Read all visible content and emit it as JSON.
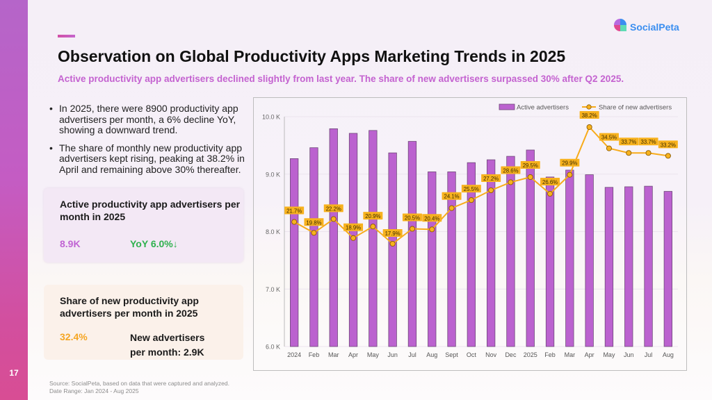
{
  "page": {
    "page_number": "17",
    "title": "Observation on Global Productivity Apps Marketing Trends in 2025",
    "subtitle": "Active productivity app advertisers declined slightly from last year. The share of new advertisers surpassed 30% after Q2 2025.",
    "logo_text": "SocialPeta",
    "logo_icon": "socialpeta-logo-icon",
    "bullets": [
      "In 2025, there were 8900 productivity app advertisers per month, a 6% decline YoY, showing a downward trend.",
      "The share of monthly new productivity app advertisers kept rising, peaking at 38.2% in April and remaining above 30% thereafter."
    ],
    "card_active": {
      "title": "Active productivity app advertisers per month in 2025",
      "value": "8.9K",
      "yoy": "YoY 6.0%↓"
    },
    "card_share": {
      "title": "Share of new productivity app advertisers per month in 2025",
      "value": "32.4%",
      "new_advertisers": "New advertisers per month: 2.9K"
    },
    "source_lines": [
      "Source: SocialPeta, based on data that were captured and analyzed.",
      "Date Range: Jan 2024 - Aug 2025"
    ],
    "colors": {
      "bar": "#bb62cf",
      "bar_edge": "#6e4a78",
      "line": "#f7ab1a",
      "label_bg": "#f7b21e",
      "accent": "#c462d0"
    }
  },
  "chart_data": {
    "type": "bar",
    "title": "",
    "xlabel": "",
    "ylabel": "",
    "categories": [
      "2024",
      "Feb",
      "Mar",
      "Apr",
      "May",
      "Jun",
      "Jul",
      "Aug",
      "Sept",
      "Oct",
      "Nov",
      "Dec",
      "2025",
      "Feb",
      "Mar",
      "Apr",
      "May",
      "Jun",
      "Jul",
      "Aug"
    ],
    "ylim": [
      6000,
      10000
    ],
    "yticks": [
      6000,
      7000,
      8000,
      9000,
      10000
    ],
    "ytick_labels": [
      "6.0 K",
      "7.0 K",
      "8.0 K",
      "9.0 K",
      "10.0 K"
    ],
    "grid": true,
    "legend_position": "top-right",
    "series": [
      {
        "name": "Active advertisers",
        "type": "bar",
        "axis": "primary",
        "values": [
          9270,
          9460,
          9790,
          9710,
          9760,
          9370,
          9570,
          9040,
          9040,
          9200,
          9250,
          9310,
          9420,
          8950,
          9070,
          8990,
          8770,
          8780,
          8790,
          8700
        ]
      },
      {
        "name": "Share of new advertisers",
        "type": "line",
        "axis": "secondary",
        "unit": "%",
        "values": [
          21.7,
          19.8,
          22.2,
          18.9,
          20.9,
          17.9,
          20.5,
          20.4,
          24.1,
          25.5,
          27.2,
          28.6,
          29.5,
          26.6,
          29.9,
          38.2,
          34.5,
          33.7,
          33.7,
          33.2
        ],
        "labels": [
          "21.7%",
          "19.8%",
          "22.2%",
          "18.9%",
          "20.9%",
          "17.9%",
          "20.5%",
          "20.4%",
          "24.1%",
          "25.5%",
          "27.2%",
          "28.6%",
          "29.5%",
          "26.6%",
          "29.9%",
          "38.2%",
          "34.5%",
          "33.7%",
          "33.7%",
          "33.2%"
        ]
      }
    ],
    "secondary_axis_visible": false
  }
}
